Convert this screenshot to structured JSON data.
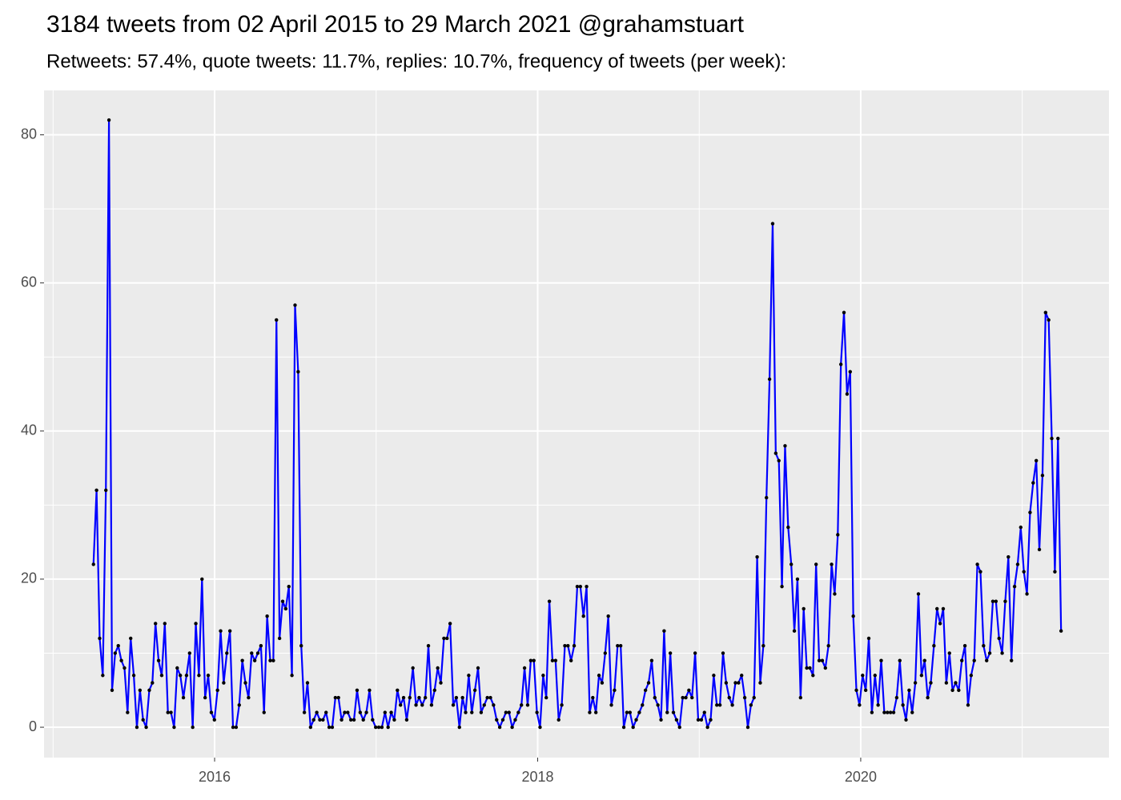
{
  "chart_data": {
    "type": "line",
    "title": "3184 tweets from 02 April 2015 to 29 March 2021 @grahamstuart",
    "subtitle": "Retweets: 57.4%, quote tweets: 11.7%, replies: 10.7%, frequency of tweets (per week):",
    "x": [
      2015.25,
      2015.2692,
      2015.2884,
      2015.3076,
      2015.3268,
      2015.346,
      2015.3652,
      2015.3844,
      2015.4036,
      2015.4228,
      2015.442,
      2015.4612,
      2015.4804,
      2015.4996,
      2015.5188,
      2015.538,
      2015.5572,
      2015.5764,
      2015.5956,
      2015.6148,
      2015.634,
      2015.6532,
      2015.6724,
      2015.6916,
      2015.7108,
      2015.73,
      2015.7492,
      2015.7684,
      2015.7876,
      2015.8068,
      2015.826,
      2015.8452,
      2015.8644,
      2015.8836,
      2015.9028,
      2015.922,
      2015.9412,
      2015.9604,
      2015.9796,
      2015.9988,
      2016.018,
      2016.0372,
      2016.0564,
      2016.0756,
      2016.0948,
      2016.114,
      2016.1332,
      2016.1524,
      2016.1716,
      2016.1908,
      2016.21,
      2016.2292,
      2016.2484,
      2016.2676,
      2016.2868,
      2016.306,
      2016.3252,
      2016.3444,
      2016.3636,
      2016.3828,
      2016.402,
      2016.4212,
      2016.4404,
      2016.4596,
      2016.4788,
      2016.498,
      2016.5172,
      2016.5364,
      2016.5556,
      2016.5748,
      2016.594,
      2016.6132,
      2016.6324,
      2016.6516,
      2016.6708,
      2016.69,
      2016.7092,
      2016.7284,
      2016.7476,
      2016.7668,
      2016.786,
      2016.8052,
      2016.8244,
      2016.8436,
      2016.8628,
      2016.882,
      2016.9012,
      2016.9204,
      2016.9396,
      2016.9588,
      2016.978,
      2016.9972,
      2017.0164,
      2017.0356,
      2017.0548,
      2017.074,
      2017.0932,
      2017.1124,
      2017.1316,
      2017.1508,
      2017.17,
      2017.1892,
      2017.2084,
      2017.2276,
      2017.2468,
      2017.266,
      2017.2852,
      2017.3044,
      2017.3236,
      2017.3428,
      2017.362,
      2017.3812,
      2017.4004,
      2017.4196,
      2017.4388,
      2017.458,
      2017.4772,
      2017.4964,
      2017.5156,
      2017.5348,
      2017.554,
      2017.5732,
      2017.5924,
      2017.6116,
      2017.6308,
      2017.65,
      2017.6692,
      2017.6884,
      2017.7076,
      2017.7268,
      2017.746,
      2017.7652,
      2017.7844,
      2017.8036,
      2017.8228,
      2017.842,
      2017.8612,
      2017.8804,
      2017.8996,
      2017.9188,
      2017.938,
      2017.9572,
      2017.9764,
      2017.9956,
      2018.0148,
      2018.034,
      2018.0532,
      2018.0724,
      2018.0916,
      2018.1108,
      2018.13,
      2018.1492,
      2018.1684,
      2018.1876,
      2018.2068,
      2018.226,
      2018.2452,
      2018.2644,
      2018.2836,
      2018.3028,
      2018.322,
      2018.3412,
      2018.3604,
      2018.3796,
      2018.3988,
      2018.418,
      2018.4372,
      2018.4564,
      2018.4756,
      2018.4948,
      2018.514,
      2018.5332,
      2018.5524,
      2018.5716,
      2018.5908,
      2018.61,
      2018.6292,
      2018.6484,
      2018.6676,
      2018.6868,
      2018.706,
      2018.7252,
      2018.7444,
      2018.7636,
      2018.7828,
      2018.802,
      2018.8212,
      2018.8404,
      2018.8596,
      2018.8788,
      2018.898,
      2018.9172,
      2018.9364,
      2018.9556,
      2018.9748,
      2018.994,
      2019.0132,
      2019.0324,
      2019.0516,
      2019.0708,
      2019.09,
      2019.1092,
      2019.1284,
      2019.1476,
      2019.1668,
      2019.186,
      2019.2052,
      2019.2244,
      2019.2436,
      2019.2628,
      2019.282,
      2019.3012,
      2019.3204,
      2019.3396,
      2019.3588,
      2019.378,
      2019.3972,
      2019.4164,
      2019.4356,
      2019.4548,
      2019.474,
      2019.4932,
      2019.5124,
      2019.5316,
      2019.5508,
      2019.57,
      2019.5892,
      2019.6084,
      2019.6276,
      2019.6468,
      2019.666,
      2019.6852,
      2019.7044,
      2019.7236,
      2019.7428,
      2019.762,
      2019.7812,
      2019.8004,
      2019.8196,
      2019.8388,
      2019.858,
      2019.8772,
      2019.8964,
      2019.9156,
      2019.9348,
      2019.954,
      2019.9732,
      2019.9924,
      2020.0116,
      2020.0308,
      2020.05,
      2020.0692,
      2020.0884,
      2020.1076,
      2020.1268,
      2020.146,
      2020.1652,
      2020.1844,
      2020.2036,
      2020.2228,
      2020.242,
      2020.2612,
      2020.2804,
      2020.2996,
      2020.3188,
      2020.338,
      2020.3572,
      2020.3764,
      2020.3956,
      2020.4148,
      2020.434,
      2020.4532,
      2020.4724,
      2020.4916,
      2020.5108,
      2020.53,
      2020.5492,
      2020.5684,
      2020.5876,
      2020.6068,
      2020.626,
      2020.6452,
      2020.6644,
      2020.6836,
      2020.7028,
      2020.722,
      2020.7412,
      2020.7604,
      2020.7796,
      2020.7988,
      2020.818,
      2020.8372,
      2020.8564,
      2020.8756,
      2020.8948,
      2020.914,
      2020.9332,
      2020.9524,
      2020.9716,
      2020.9908,
      2021.01,
      2021.0292,
      2021.0484,
      2021.0676,
      2021.0868,
      2021.106,
      2021.1252,
      2021.1444,
      2021.1636,
      2021.1828,
      2021.202,
      2021.2212,
      2021.2404
    ],
    "values": [
      22,
      32,
      12,
      7,
      32,
      82,
      5,
      10,
      11,
      9,
      8,
      2,
      12,
      7,
      0,
      5,
      1,
      0,
      5,
      6,
      14,
      9,
      7,
      14,
      2,
      2,
      0,
      8,
      7,
      4,
      7,
      10,
      0,
      14,
      7,
      20,
      4,
      7,
      2,
      1,
      5,
      13,
      6,
      10,
      13,
      0,
      0,
      3,
      9,
      6,
      4,
      10,
      9,
      10,
      11,
      2,
      15,
      9,
      9,
      55,
      12,
      17,
      16,
      19,
      7,
      57,
      48,
      11,
      2,
      6,
      0,
      1,
      2,
      1,
      1,
      2,
      0,
      0,
      4,
      4,
      1,
      2,
      2,
      1,
      1,
      5,
      2,
      1,
      2,
      5,
      1,
      0,
      0,
      0,
      2,
      0,
      2,
      1,
      5,
      3,
      4,
      1,
      4,
      8,
      3,
      4,
      3,
      4,
      11,
      3,
      5,
      8,
      6,
      12,
      12,
      14,
      3,
      4,
      0,
      4,
      2,
      7,
      2,
      5,
      8,
      2,
      3,
      4,
      4,
      3,
      1,
      0,
      1,
      2,
      2,
      0,
      1,
      2,
      3,
      8,
      3,
      9,
      9,
      2,
      0,
      7,
      4,
      17,
      9,
      9,
      1,
      3,
      11,
      11,
      9,
      11,
      19,
      19,
      15,
      19,
      2,
      4,
      2,
      7,
      6,
      10,
      15,
      3,
      5,
      11,
      11,
      0,
      2,
      2,
      0,
      1,
      2,
      3,
      5,
      6,
      9,
      4,
      3,
      1,
      13,
      2,
      10,
      2,
      1,
      0,
      4,
      4,
      5,
      4,
      10,
      1,
      1,
      2,
      0,
      1,
      7,
      3,
      3,
      10,
      6,
      4,
      3,
      6,
      6,
      7,
      4,
      0,
      3,
      4,
      23,
      6,
      11,
      31,
      47,
      68,
      37,
      36,
      19,
      38,
      27,
      22,
      13,
      20,
      4,
      16,
      8,
      8,
      7,
      22,
      9,
      9,
      8,
      11,
      22,
      18,
      26,
      49,
      56,
      45,
      48,
      15,
      5,
      3,
      7,
      5,
      12,
      2,
      7,
      3,
      9,
      2,
      2,
      2,
      2,
      4,
      9,
      3,
      1,
      5,
      2,
      6,
      18,
      7,
      9,
      4,
      6,
      11,
      16,
      14,
      16,
      6,
      10,
      5,
      6,
      5,
      9,
      11,
      3,
      7,
      9,
      22,
      21,
      11,
      9,
      10,
      17,
      17,
      12,
      10,
      17,
      23,
      9,
      19,
      22,
      27,
      21,
      18,
      29,
      33,
      36,
      24,
      34,
      56,
      55,
      39,
      21,
      39,
      13
    ],
    "color": "#0000ff",
    "point_color": "#000000",
    "xlim": [
      2014.944,
      2021.537
    ],
    "xticks": [
      2016,
      2018,
      2020
    ],
    "ylim": [
      -4.1,
      86
    ],
    "yticks": [
      0,
      20,
      40,
      60,
      80
    ],
    "minor_xticks": [
      2015,
      2017,
      2019,
      2021
    ],
    "minor_yticks": [
      10,
      30,
      50,
      70
    ],
    "grid": true
  }
}
